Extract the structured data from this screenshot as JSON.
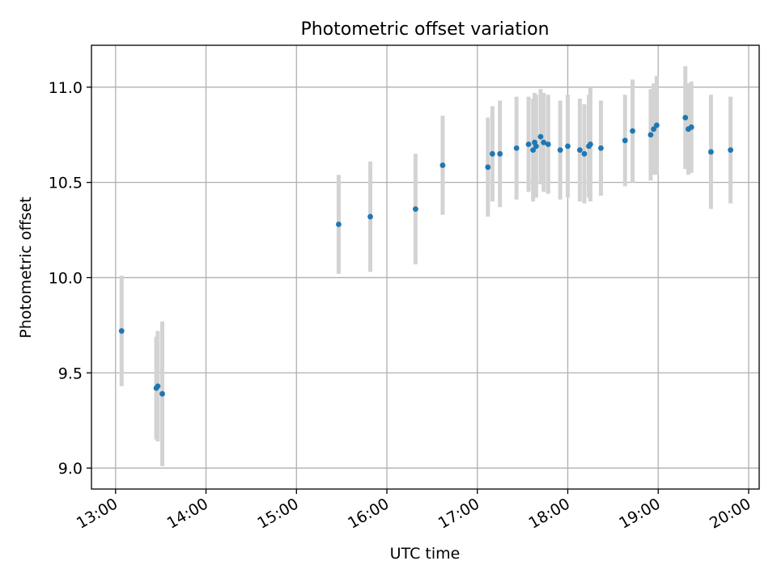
{
  "chart_data": {
    "type": "scatter",
    "title": "Photometric offset variation",
    "xlabel": "UTC time",
    "ylabel": "Photometric offset",
    "x_ticks": [
      "13:00",
      "14:00",
      "15:00",
      "16:00",
      "17:00",
      "18:00",
      "19:00",
      "20:00"
    ],
    "y_ticks": [
      9.0,
      9.5,
      10.0,
      10.5,
      11.0
    ],
    "xlim": [
      "12:44",
      "20:07"
    ],
    "ylim": [
      8.89,
      11.22
    ],
    "grid": true,
    "colors": {
      "point": "#1f77b4",
      "errorbar": "#d3d3d3",
      "grid": "#b0b0b0"
    },
    "points": [
      {
        "x": "13:04",
        "y": 9.72,
        "err": 0.29
      },
      {
        "x": "13:27",
        "y": 9.42,
        "err": 0.27
      },
      {
        "x": "13:28",
        "y": 9.43,
        "err": 0.29
      },
      {
        "x": "13:31",
        "y": 9.39,
        "err": 0.38
      },
      {
        "x": "15:28",
        "y": 10.28,
        "err": 0.26
      },
      {
        "x": "15:49",
        "y": 10.32,
        "err": 0.29
      },
      {
        "x": "16:19",
        "y": 10.36,
        "err": 0.29
      },
      {
        "x": "16:37",
        "y": 10.59,
        "err": 0.26
      },
      {
        "x": "17:07",
        "y": 10.58,
        "err": 0.26
      },
      {
        "x": "17:10",
        "y": 10.65,
        "err": 0.25
      },
      {
        "x": "17:15",
        "y": 10.65,
        "err": 0.28
      },
      {
        "x": "17:26",
        "y": 10.68,
        "err": 0.27
      },
      {
        "x": "17:34",
        "y": 10.7,
        "err": 0.25
      },
      {
        "x": "17:37",
        "y": 10.67,
        "err": 0.27
      },
      {
        "x": "17:38",
        "y": 10.71,
        "err": 0.26
      },
      {
        "x": "17:39",
        "y": 10.69,
        "err": 0.27
      },
      {
        "x": "17:42",
        "y": 10.74,
        "err": 0.25
      },
      {
        "x": "17:44",
        "y": 10.71,
        "err": 0.26
      },
      {
        "x": "17:47",
        "y": 10.7,
        "err": 0.26
      },
      {
        "x": "17:55",
        "y": 10.67,
        "err": 0.26
      },
      {
        "x": "18:00",
        "y": 10.69,
        "err": 0.27
      },
      {
        "x": "18:08",
        "y": 10.67,
        "err": 0.27
      },
      {
        "x": "18:11",
        "y": 10.65,
        "err": 0.26
      },
      {
        "x": "18:14",
        "y": 10.69,
        "err": 0.27
      },
      {
        "x": "18:15",
        "y": 10.7,
        "err": 0.3
      },
      {
        "x": "18:22",
        "y": 10.68,
        "err": 0.25
      },
      {
        "x": "18:38",
        "y": 10.72,
        "err": 0.24
      },
      {
        "x": "18:43",
        "y": 10.77,
        "err": 0.27
      },
      {
        "x": "18:55",
        "y": 10.75,
        "err": 0.24
      },
      {
        "x": "18:57",
        "y": 10.78,
        "err": 0.24
      },
      {
        "x": "18:59",
        "y": 10.8,
        "err": 0.26
      },
      {
        "x": "19:18",
        "y": 10.84,
        "err": 0.27
      },
      {
        "x": "19:20",
        "y": 10.78,
        "err": 0.24
      },
      {
        "x": "19:22",
        "y": 10.79,
        "err": 0.24
      },
      {
        "x": "19:35",
        "y": 10.66,
        "err": 0.3
      },
      {
        "x": "19:48",
        "y": 10.67,
        "err": 0.28
      }
    ]
  }
}
